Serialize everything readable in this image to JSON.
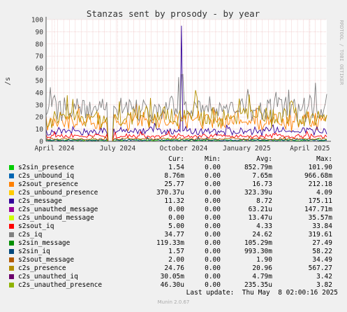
{
  "chart_data": {
    "type": "line",
    "title": "Stanzas sent by prosody - by year",
    "ylabel": "/s",
    "watermark": "RRDTOOL / TOBI OETIKER",
    "ylim": [
      0,
      100
    ],
    "yticks": [
      0,
      10,
      20,
      30,
      40,
      50,
      60,
      70,
      80,
      90,
      100
    ],
    "xticks": [
      "April 2024",
      "July 2024",
      "October 2024",
      "January 2025",
      "April 2025"
    ],
    "grid": true,
    "legend_placement": "bottom",
    "legend_headers": {
      "cur": "Cur:",
      "min": "Min:",
      "avg": "Avg:",
      "max": "Max:"
    },
    "series": [
      {
        "name": "s2sin_presence",
        "color": "#00cc00",
        "cur": "1.54",
        "min": "0.00",
        "avg": "852.79m",
        "max": "101.90"
      },
      {
        "name": "c2s_unbound_iq",
        "color": "#0066b3",
        "cur": "8.76m",
        "min": "0.00",
        "avg": "7.65m",
        "max": "966.68m"
      },
      {
        "name": "s2sout_presence",
        "color": "#ff8000",
        "cur": "25.77",
        "min": "0.00",
        "avg": "16.73",
        "max": "212.18"
      },
      {
        "name": "c2s_unbound_presence",
        "color": "#ffcc00",
        "cur": "370.37u",
        "min": "0.00",
        "avg": "323.39u",
        "max": "4.09"
      },
      {
        "name": "c2s_message",
        "color": "#330099",
        "cur": "11.32",
        "min": "0.00",
        "avg": "8.72",
        "max": "175.11"
      },
      {
        "name": "c2s_unauthed_message",
        "color": "#990099",
        "cur": "0.00",
        "min": "0.00",
        "avg": "63.21u",
        "max": "147.71m"
      },
      {
        "name": "c2s_unbound_message",
        "color": "#ccff00",
        "cur": "0.00",
        "min": "0.00",
        "avg": "13.47u",
        "max": "35.57m"
      },
      {
        "name": "s2sout_iq",
        "color": "#ff0000",
        "cur": "5.00",
        "min": "0.00",
        "avg": "4.33",
        "max": "33.84"
      },
      {
        "name": "c2s_iq",
        "color": "#808080",
        "cur": "34.77",
        "min": "0.00",
        "avg": "24.62",
        "max": "319.61"
      },
      {
        "name": "s2sin_message",
        "color": "#008f00",
        "cur": "119.33m",
        "min": "0.00",
        "avg": "105.29m",
        "max": "27.49"
      },
      {
        "name": "s2sin_iq",
        "color": "#00487d",
        "cur": "1.57",
        "min": "0.00",
        "avg": "993.30m",
        "max": "58.22"
      },
      {
        "name": "s2sout_message",
        "color": "#b35a00",
        "cur": "2.00",
        "min": "0.00",
        "avg": "1.90",
        "max": "34.49"
      },
      {
        "name": "c2s_presence",
        "color": "#b38f00",
        "cur": "24.76",
        "min": "0.00",
        "avg": "20.96",
        "max": "567.27"
      },
      {
        "name": "c2s_unauthed_iq",
        "color": "#6b006b",
        "cur": "30.05m",
        "min": "0.00",
        "avg": "4.79m",
        "max": "3.42"
      },
      {
        "name": "c2s_unauthed_presence",
        "color": "#8fb300",
        "cur": "46.30u",
        "min": "0.00",
        "avg": "235.35u",
        "max": "3.82"
      }
    ],
    "last_update": "Last update:  Thu May  8 02:00:16 2025",
    "footer": "Munin 2.0.67"
  }
}
